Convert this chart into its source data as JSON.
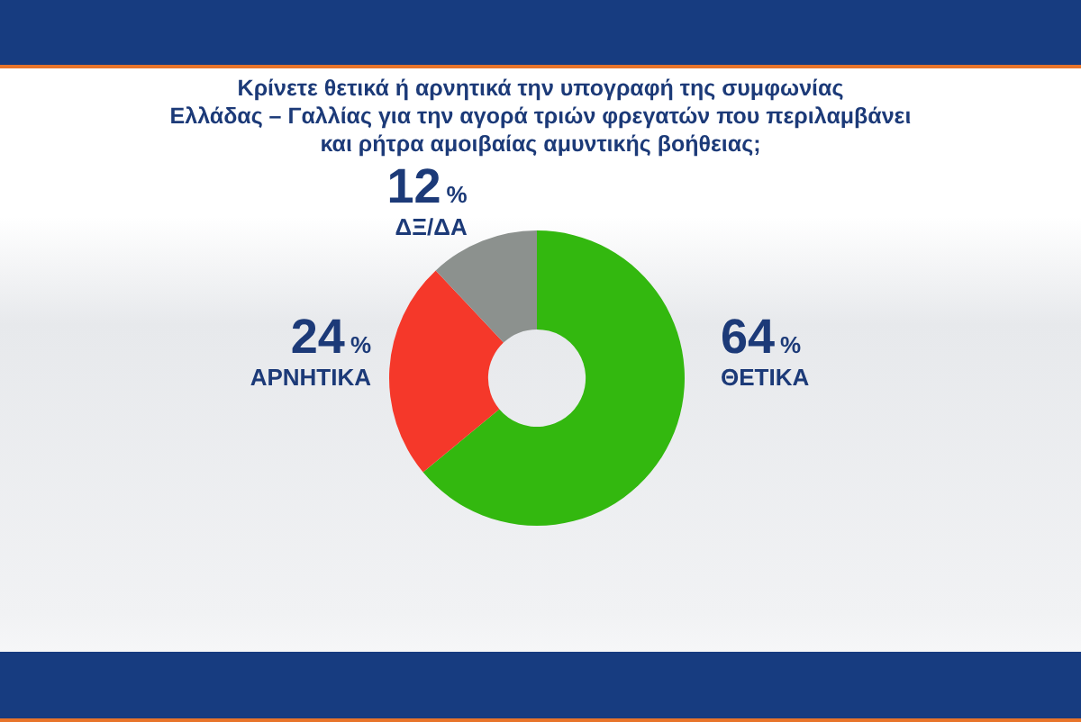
{
  "chart_data": {
    "type": "donut",
    "title": "Κρίνετε θετικά ή αρνητικά την υπογραφή της συμφωνίας\nΕλλάδας – Γαλλίας για την αγορά τριών φρεγατών που περιλαμβάνει\nκαι ρήτρα αμοιβαίας αμυντικής βοήθειας;",
    "categories": [
      "ΘΕΤΙΚΑ",
      "ΑΡΝΗΤΙΚΑ",
      "ΔΞ/ΔΑ"
    ],
    "values": [
      64,
      24,
      12
    ],
    "colors": [
      "#33b80f",
      "#f5382a",
      "#8c918e"
    ],
    "value_labels": [
      "64%",
      "24%",
      "12%"
    ]
  }
}
